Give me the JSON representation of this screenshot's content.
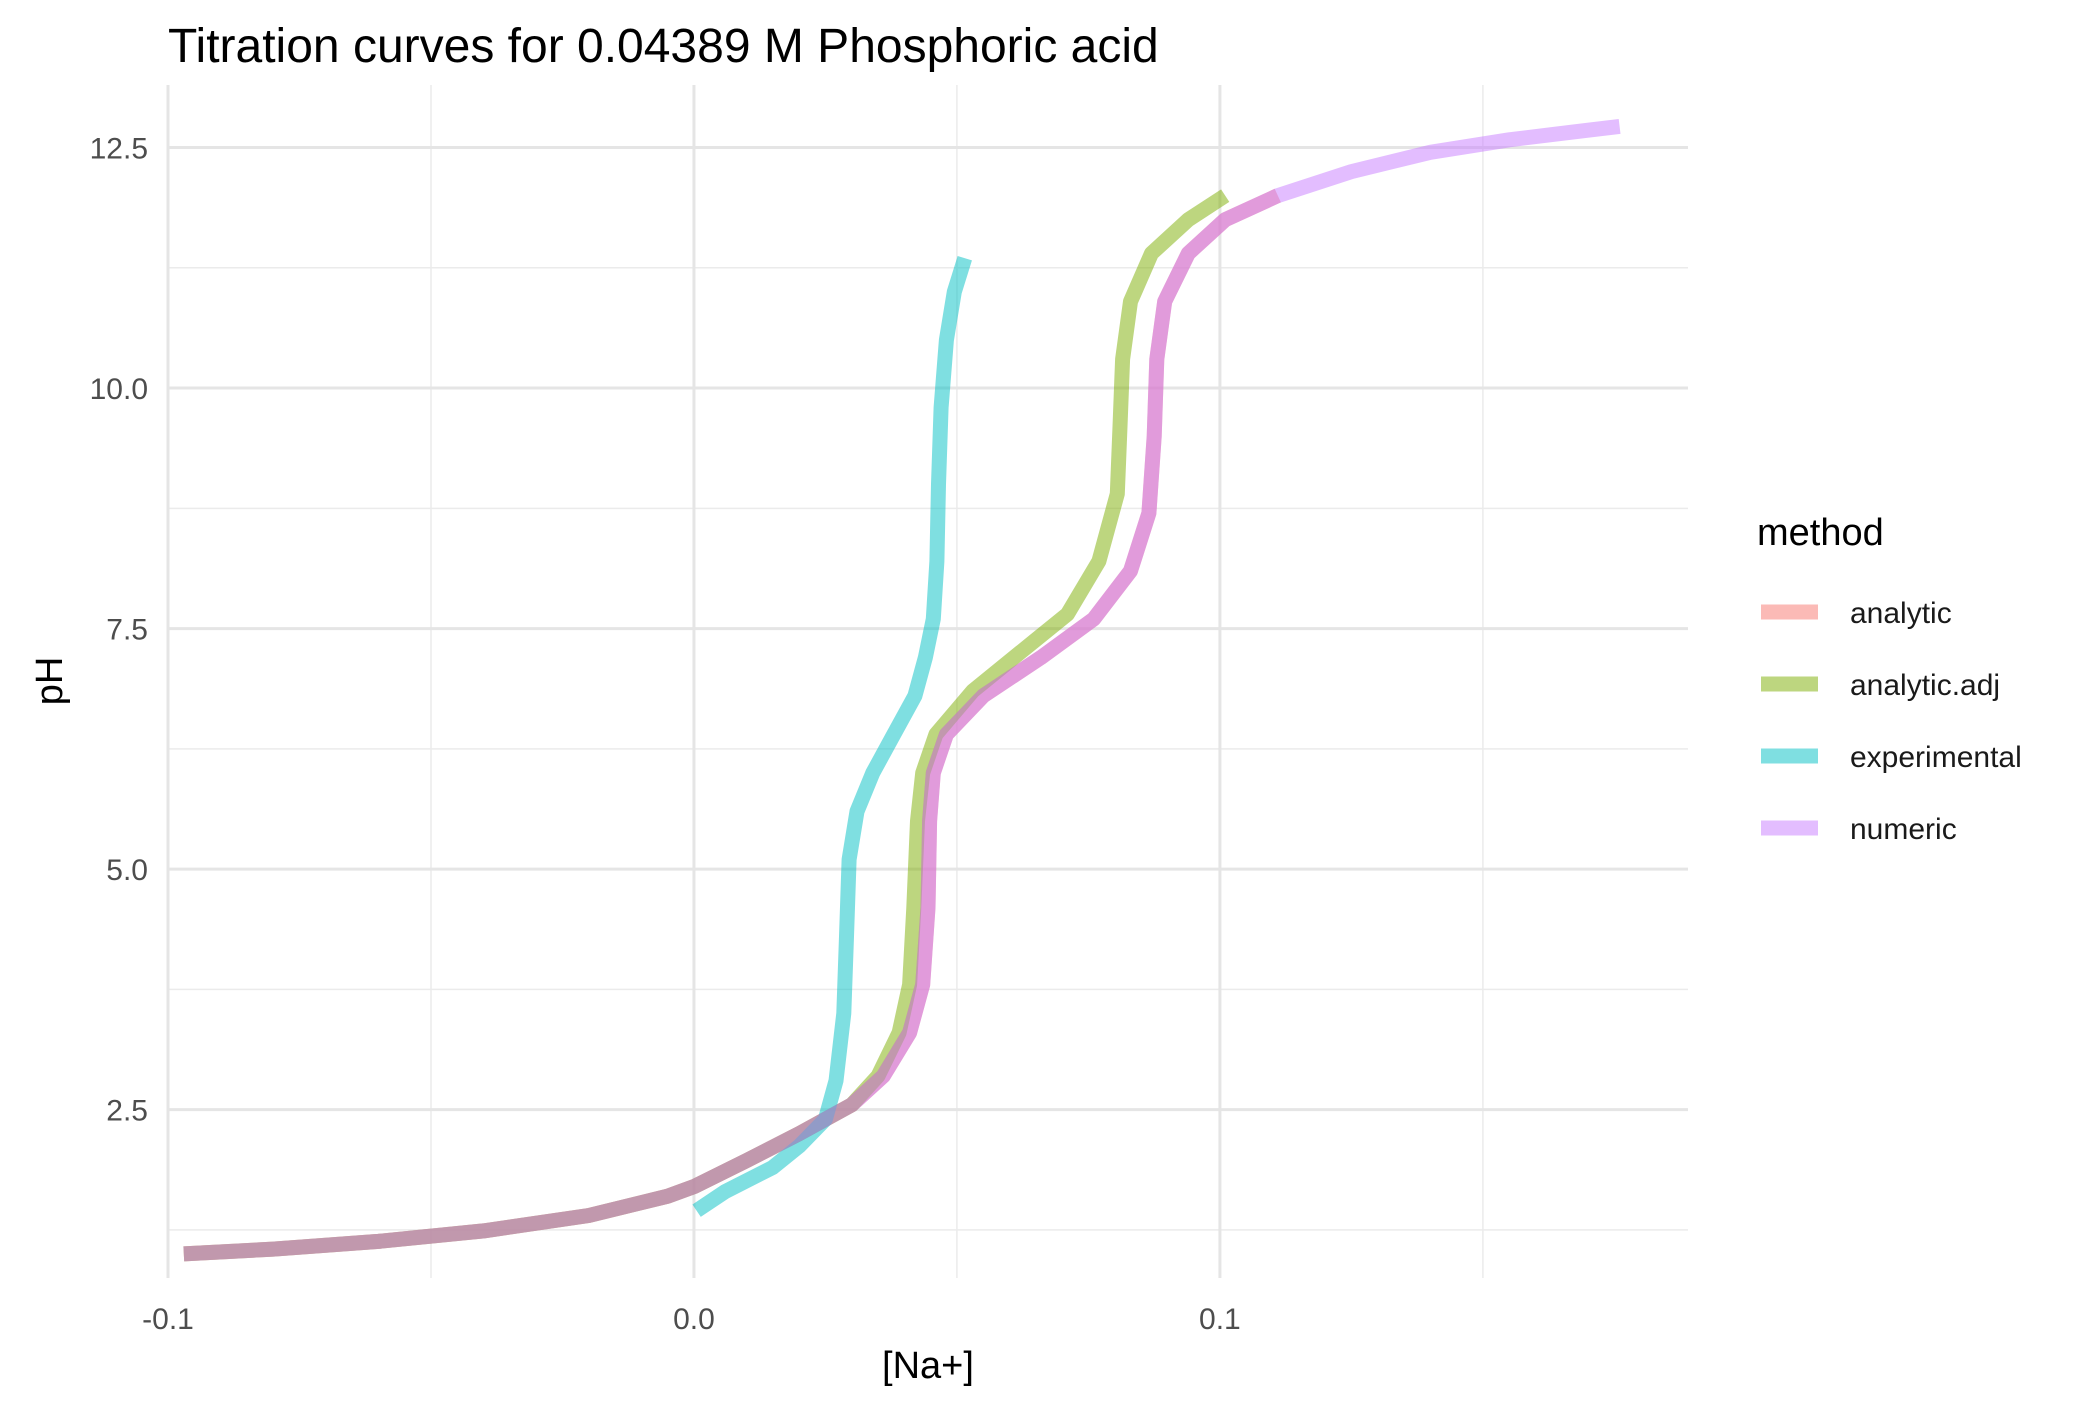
{
  "chart_data": {
    "type": "line",
    "title": "Titration curves for 0.04389 M Phosphoric acid",
    "xlabel": "[Na+]",
    "ylabel": "pH",
    "xlim": [
      -0.1,
      0.189
    ],
    "ylim": [
      0.75,
      13.15
    ],
    "x_ticks": [
      -0.1,
      0.0,
      0.1
    ],
    "x_tick_labels": [
      "-0.1",
      "0.0",
      "0.1"
    ],
    "y_ticks": [
      2.5,
      5.0,
      7.5,
      10.0,
      12.5
    ],
    "y_tick_labels": [
      "2.5",
      "5.0",
      "7.5",
      "10.0",
      "12.5"
    ],
    "grid": true,
    "legend": {
      "title": "method",
      "position": "right"
    },
    "series": [
      {
        "name": "analytic",
        "color": "#F8766D",
        "points": [
          [
            -0.097,
            1.0
          ],
          [
            -0.08,
            1.05
          ],
          [
            -0.06,
            1.13
          ],
          [
            -0.04,
            1.24
          ],
          [
            -0.02,
            1.4
          ],
          [
            -0.005,
            1.6
          ],
          [
            0.0,
            1.7
          ],
          [
            0.01,
            1.97
          ],
          [
            0.02,
            2.25
          ],
          [
            0.03,
            2.55
          ],
          [
            0.036,
            2.85
          ],
          [
            0.041,
            3.3
          ],
          [
            0.0435,
            3.8
          ],
          [
            0.0445,
            4.6
          ],
          [
            0.0448,
            5.5
          ],
          [
            0.0455,
            6.0
          ],
          [
            0.048,
            6.4
          ],
          [
            0.055,
            6.8
          ],
          [
            0.066,
            7.2
          ],
          [
            0.076,
            7.6
          ],
          [
            0.083,
            8.1
          ],
          [
            0.0865,
            8.7
          ],
          [
            0.0875,
            9.5
          ],
          [
            0.088,
            10.3
          ],
          [
            0.0895,
            10.9
          ],
          [
            0.094,
            11.4
          ],
          [
            0.101,
            11.75
          ],
          [
            0.111,
            12.0
          ]
        ]
      },
      {
        "name": "analytic.adj",
        "color": "#7CAE00",
        "points": [
          [
            -0.097,
            1.0
          ],
          [
            -0.08,
            1.05
          ],
          [
            -0.06,
            1.13
          ],
          [
            -0.04,
            1.24
          ],
          [
            -0.02,
            1.4
          ],
          [
            -0.005,
            1.6
          ],
          [
            0.0,
            1.7
          ],
          [
            0.01,
            1.97
          ],
          [
            0.02,
            2.25
          ],
          [
            0.03,
            2.55
          ],
          [
            0.035,
            2.85
          ],
          [
            0.039,
            3.3
          ],
          [
            0.041,
            3.8
          ],
          [
            0.0418,
            4.6
          ],
          [
            0.0425,
            5.5
          ],
          [
            0.0435,
            6.0
          ],
          [
            0.046,
            6.4
          ],
          [
            0.053,
            6.85
          ],
          [
            0.062,
            7.25
          ],
          [
            0.071,
            7.65
          ],
          [
            0.077,
            8.2
          ],
          [
            0.0805,
            8.9
          ],
          [
            0.081,
            9.6
          ],
          [
            0.0815,
            10.3
          ],
          [
            0.083,
            10.9
          ],
          [
            0.087,
            11.4
          ],
          [
            0.094,
            11.75
          ],
          [
            0.101,
            12.0
          ]
        ]
      },
      {
        "name": "experimental",
        "color": "#00BFC4",
        "points": [
          [
            0.0005,
            1.45
          ],
          [
            0.006,
            1.65
          ],
          [
            0.015,
            1.9
          ],
          [
            0.02,
            2.12
          ],
          [
            0.025,
            2.4
          ],
          [
            0.027,
            2.8
          ],
          [
            0.0285,
            3.5
          ],
          [
            0.029,
            4.3
          ],
          [
            0.0295,
            5.1
          ],
          [
            0.031,
            5.6
          ],
          [
            0.034,
            6.0
          ],
          [
            0.038,
            6.4
          ],
          [
            0.042,
            6.8
          ],
          [
            0.044,
            7.2
          ],
          [
            0.0455,
            7.6
          ],
          [
            0.0462,
            8.2
          ],
          [
            0.0465,
            9.0
          ],
          [
            0.047,
            9.8
          ],
          [
            0.048,
            10.5
          ],
          [
            0.0495,
            11.0
          ],
          [
            0.0515,
            11.35
          ]
        ]
      },
      {
        "name": "numeric",
        "color": "#C77CFF",
        "points": [
          [
            -0.097,
            1.0
          ],
          [
            -0.08,
            1.05
          ],
          [
            -0.06,
            1.13
          ],
          [
            -0.04,
            1.24
          ],
          [
            -0.02,
            1.4
          ],
          [
            -0.005,
            1.6
          ],
          [
            0.0,
            1.7
          ],
          [
            0.01,
            1.97
          ],
          [
            0.02,
            2.25
          ],
          [
            0.03,
            2.55
          ],
          [
            0.036,
            2.85
          ],
          [
            0.041,
            3.3
          ],
          [
            0.0435,
            3.8
          ],
          [
            0.0445,
            4.6
          ],
          [
            0.0448,
            5.5
          ],
          [
            0.0455,
            6.0
          ],
          [
            0.048,
            6.4
          ],
          [
            0.055,
            6.8
          ],
          [
            0.066,
            7.2
          ],
          [
            0.076,
            7.6
          ],
          [
            0.083,
            8.1
          ],
          [
            0.0865,
            8.7
          ],
          [
            0.0875,
            9.5
          ],
          [
            0.088,
            10.3
          ],
          [
            0.0895,
            10.9
          ],
          [
            0.094,
            11.4
          ],
          [
            0.101,
            11.75
          ],
          [
            0.111,
            12.0
          ],
          [
            0.125,
            12.25
          ],
          [
            0.14,
            12.45
          ],
          [
            0.155,
            12.58
          ],
          [
            0.17,
            12.68
          ],
          [
            0.176,
            12.72
          ]
        ]
      }
    ]
  }
}
